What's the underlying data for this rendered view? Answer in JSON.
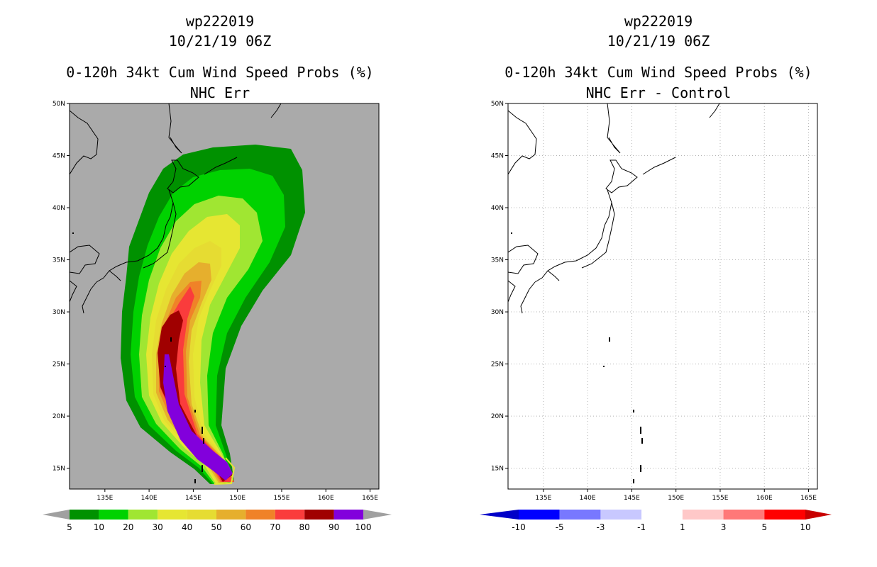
{
  "panels": [
    {
      "storm_id": "wp222019",
      "datetime": "10/21/19 06Z",
      "product": "0-120h 34kt Cum Wind Speed Probs (%)",
      "subtitle": "NHC Err",
      "background": "#aaaaaa",
      "colorbar_labels": [
        "5",
        "10",
        "20",
        "30",
        "40",
        "50",
        "60",
        "70",
        "80",
        "90",
        "100"
      ],
      "colorbar_colors": [
        "#009100",
        "#00d200",
        "#a0e632",
        "#e6e632",
        "#e6dc32",
        "#e6af2d",
        "#f08228",
        "#fa3c3c",
        "#a00000",
        "#8200dc"
      ]
    },
    {
      "storm_id": "wp222019",
      "datetime": "10/21/19 06Z",
      "product": "0-120h 34kt Cum Wind Speed Probs (%)",
      "subtitle": "NHC Err - Control",
      "background": "#ffffff",
      "colorbar_labels": [
        "-10",
        "-5",
        "-3",
        "-1",
        "1",
        "3",
        "5",
        "10"
      ],
      "colorbar_colors": [
        "#0000c8",
        "#0000ff",
        "#7878ff",
        "#c8c8ff",
        "#ffffff",
        "#ffc8c8",
        "#ff7878",
        "#ff0000",
        "#c80000"
      ]
    }
  ],
  "axes": {
    "lat_labels": [
      "50N",
      "45N",
      "40N",
      "35N",
      "30N",
      "25N",
      "20N",
      "15N"
    ],
    "lon_labels": [
      "135E",
      "140E",
      "145E",
      "150E",
      "155E",
      "160E",
      "165E"
    ],
    "lat_values": [
      50,
      45,
      40,
      35,
      30,
      25,
      20,
      15
    ],
    "lon_values": [
      135,
      140,
      145,
      150,
      155,
      160,
      165
    ],
    "lon_range": [
      131,
      166
    ],
    "lat_range": [
      13,
      50
    ]
  },
  "probability_track": [
    {
      "lon": 148.2,
      "lat": 15.0
    },
    {
      "lon": 146.5,
      "lat": 18.5
    },
    {
      "lon": 145.0,
      "lat": 22.5
    },
    {
      "lon": 144.5,
      "lat": 27.0
    },
    {
      "lon": 145.8,
      "lat": 31.5
    },
    {
      "lon": 148.0,
      "lat": 35.5
    },
    {
      "lon": 150.0,
      "lat": 39.5
    },
    {
      "lon": 151.5,
      "lat": 43.0
    }
  ]
}
